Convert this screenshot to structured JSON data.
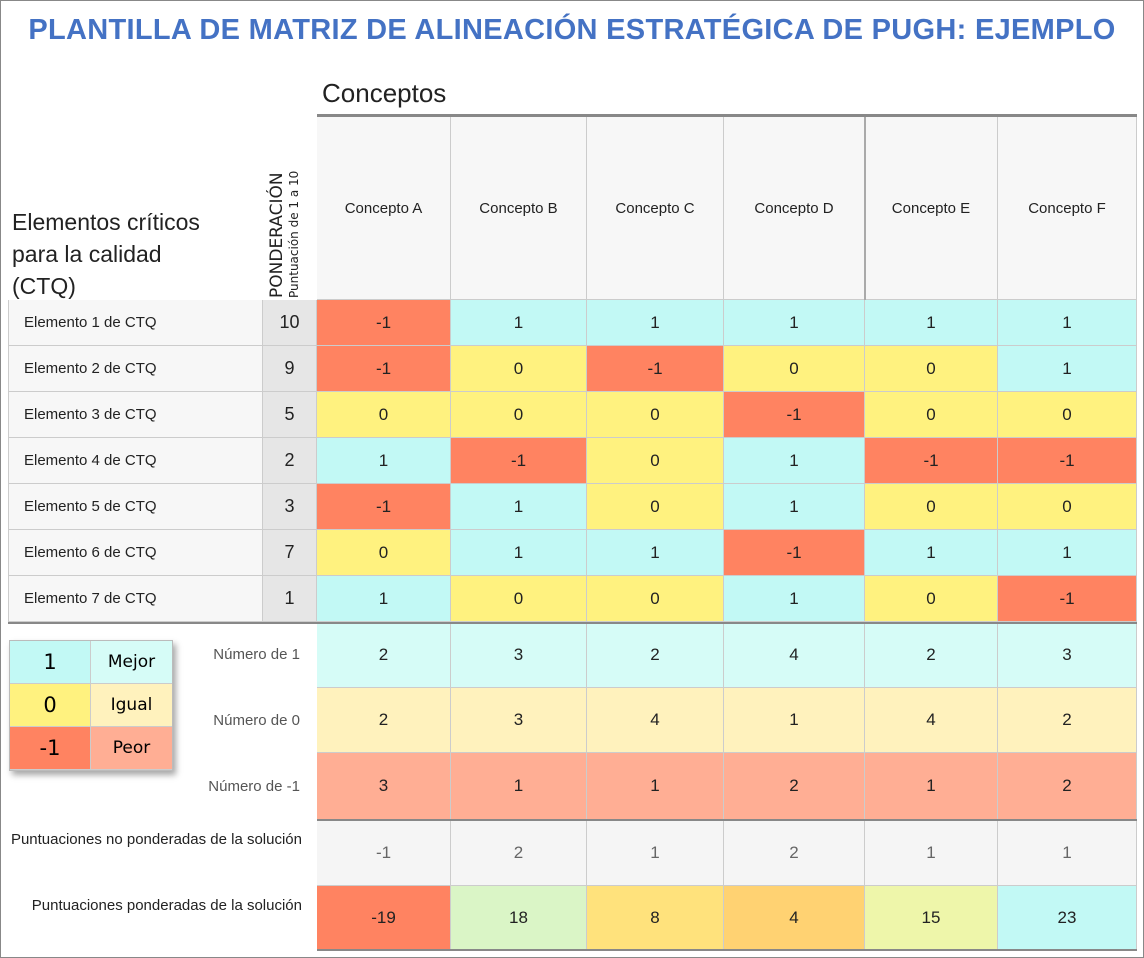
{
  "title": "PLANTILLA DE MATRIZ DE ALINEACIÓN ESTRATÉGICA DE PUGH: EJEMPLO",
  "concepts_label": "Conceptos",
  "ctq_title": [
    "Elementos críticos",
    "para la calidad",
    "(CTQ)"
  ],
  "weight_header": "PONDERACIÓN",
  "weight_subheader": "Puntuación de 1 a 10",
  "concepts": [
    "Concepto A",
    "Concepto B",
    "Concepto C",
    "Concepto D",
    "Concepto E",
    "Concepto F"
  ],
  "rows": [
    {
      "label": "Elemento 1 de CTQ",
      "weight": "10",
      "scores": [
        "-1",
        "1",
        "1",
        "1",
        "1",
        "1"
      ]
    },
    {
      "label": "Elemento 2 de CTQ",
      "weight": "9",
      "scores": [
        "-1",
        "0",
        "-1",
        "0",
        "0",
        "1"
      ]
    },
    {
      "label": "Elemento 3 de CTQ",
      "weight": "5",
      "scores": [
        "0",
        "0",
        "0",
        "-1",
        "0",
        "0"
      ]
    },
    {
      "label": "Elemento 4 de CTQ",
      "weight": "2",
      "scores": [
        "1",
        "-1",
        "0",
        "1",
        "-1",
        "-1"
      ]
    },
    {
      "label": "Elemento 5 de CTQ",
      "weight": "3",
      "scores": [
        "-1",
        "1",
        "0",
        "1",
        "0",
        "0"
      ]
    },
    {
      "label": "Elemento 6 de CTQ",
      "weight": "7",
      "scores": [
        "0",
        "1",
        "1",
        "-1",
        "1",
        "1"
      ]
    },
    {
      "label": "Elemento 7 de CTQ",
      "weight": "1",
      "scores": [
        "1",
        "0",
        "0",
        "1",
        "0",
        "-1"
      ]
    }
  ],
  "legend": [
    {
      "value": "1",
      "text": "Mejor"
    },
    {
      "value": "0",
      "text": "Igual"
    },
    {
      "value": "-1",
      "text": "Peor"
    }
  ],
  "summary": [
    {
      "label": "Número de 1",
      "values": [
        "2",
        "3",
        "2",
        "4",
        "2",
        "3"
      ]
    },
    {
      "label": "Número de 0",
      "values": [
        "2",
        "3",
        "4",
        "1",
        "4",
        "2"
      ]
    },
    {
      "label": "Número de -1",
      "values": [
        "3",
        "1",
        "1",
        "2",
        "1",
        "2"
      ]
    }
  ],
  "unweighted": {
    "label": "Puntuaciones no ponderadas de la solución",
    "values": [
      "-1",
      "2",
      "1",
      "2",
      "1",
      "1"
    ]
  },
  "weighted": {
    "label": "Puntuaciones ponderadas de la solución",
    "values": [
      "-19",
      "18",
      "8",
      "4",
      "15",
      "23"
    ],
    "colors": [
      "#ff8361",
      "#daf5c6",
      "#ffe27c",
      "#ffd272",
      "#eef6aa",
      "#c2f9f5"
    ]
  },
  "colors": {
    "better": "#c2f9f5",
    "equal": "#fff27f",
    "worse": "#ff8361",
    "better_light": "#d6fcf7",
    "equal_light": "#fff2bd",
    "worse_light": "#ffae94",
    "title": "#4472c4"
  }
}
